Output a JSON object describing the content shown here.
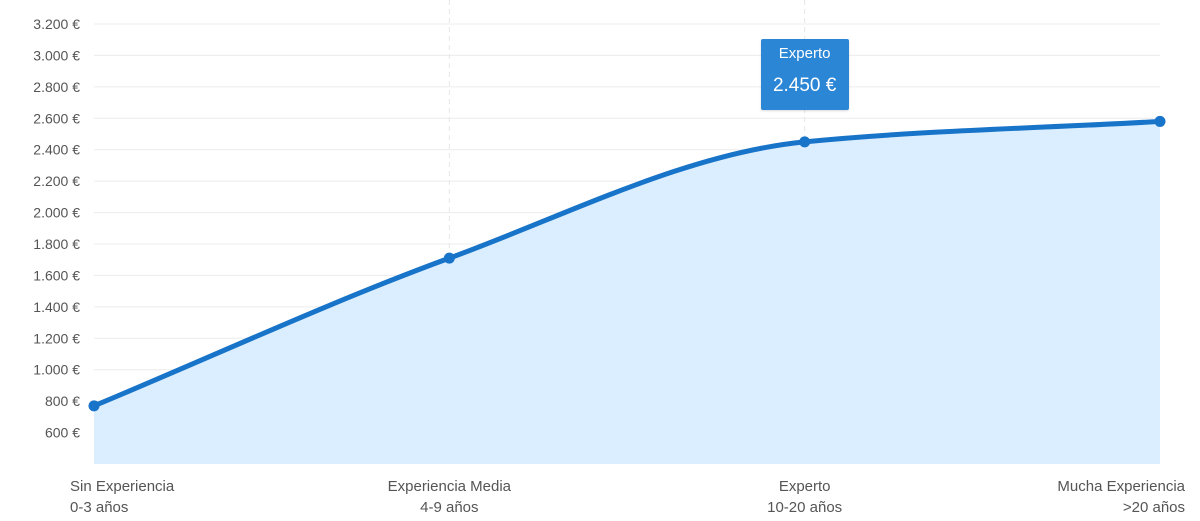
{
  "chart_data": {
    "type": "area",
    "categories": [
      {
        "name": "Sin Experiencia",
        "range": "0-3 años"
      },
      {
        "name": "Experiencia Media",
        "range": "4-9 años"
      },
      {
        "name": "Experto",
        "range": "10-20 años"
      },
      {
        "name": "Mucha Experiencia",
        "range": ">20 años"
      }
    ],
    "values": [
      770,
      1710,
      2450,
      2580
    ],
    "y_ticks": [
      "600 €",
      "800 €",
      "1.000 €",
      "1.200 €",
      "1.400 €",
      "1.600 €",
      "1.800 €",
      "2.000 €",
      "2.200 €",
      "2.400 €",
      "2.600 €",
      "2.800 €",
      "3.000 €",
      "3.200 €"
    ],
    "y_tick_values": [
      600,
      800,
      1000,
      1200,
      1400,
      1600,
      1800,
      2000,
      2200,
      2400,
      2600,
      2800,
      3000,
      3200
    ],
    "ylim": [
      400,
      3200
    ],
    "grid": true,
    "colors": {
      "line": "#1874c9",
      "fill": "#dbeeff",
      "grid": "#ececec",
      "tooltip": "#2b86d6"
    },
    "tooltip": {
      "label": "Experto",
      "value": "2.450 €"
    }
  }
}
